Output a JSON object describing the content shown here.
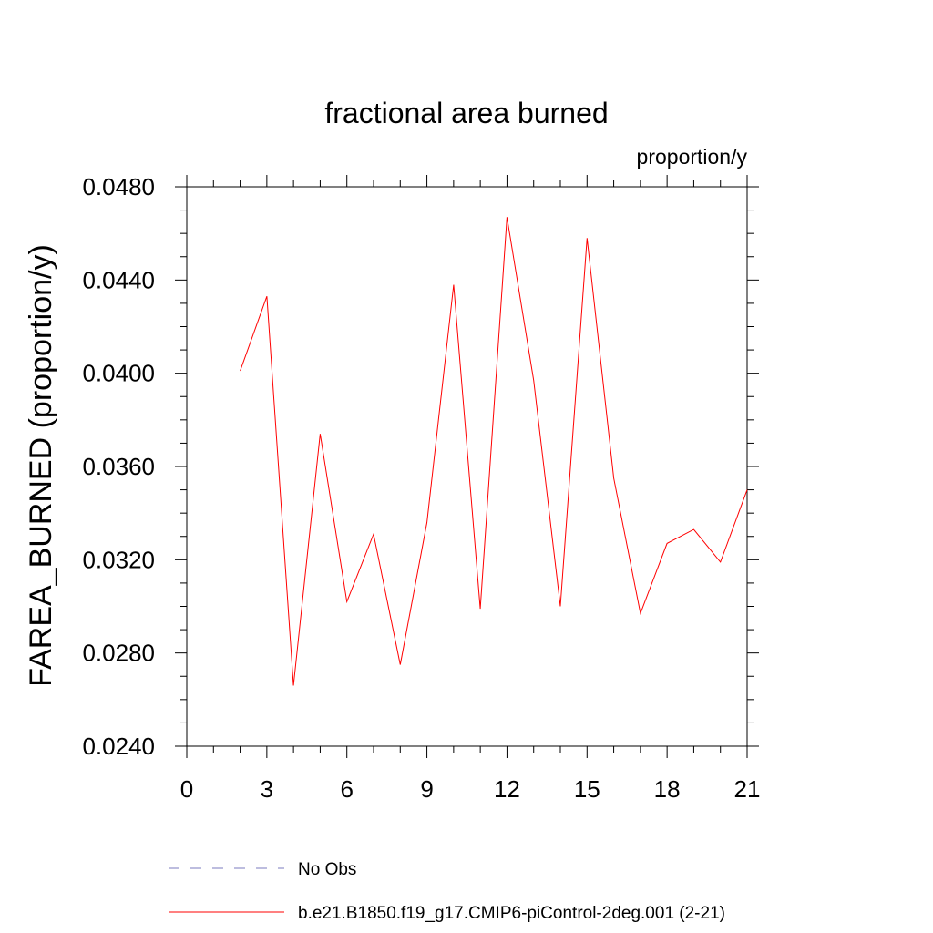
{
  "chart_data": {
    "type": "line",
    "title": "fractional area burned",
    "units": "proportion/y",
    "ylabel": "FAREA_BURNED  (proportion/y)",
    "xlabel": "",
    "xlim": [
      0,
      21
    ],
    "ylim": [
      0.024,
      0.048
    ],
    "x_ticks": [
      "0",
      "3",
      "6",
      "9",
      "12",
      "15",
      "18",
      "21"
    ],
    "y_ticks": [
      "0.0240",
      "0.0280",
      "0.0320",
      "0.0360",
      "0.0400",
      "0.0440",
      "0.0480"
    ],
    "series": [
      {
        "name": "b.e21.B1850.f19_g17.CMIP6-piControl-2deg.001 (2-21)",
        "color": "#ff0000",
        "style": "solid",
        "x": [
          2,
          3,
          4,
          5,
          6,
          7,
          8,
          9,
          10,
          11,
          12,
          13,
          14,
          15,
          16,
          17,
          18,
          19,
          20,
          21
        ],
        "y": [
          0.0401,
          0.0433,
          0.0266,
          0.0374,
          0.0302,
          0.0331,
          0.0275,
          0.0336,
          0.0438,
          0.0299,
          0.0467,
          0.0397,
          0.03,
          0.0458,
          0.0355,
          0.0297,
          0.0327,
          0.0333,
          0.0319,
          0.035
        ]
      }
    ],
    "legend": [
      {
        "label": "No Obs",
        "color": "#7b7bbf",
        "style": "dashed"
      },
      {
        "label": "b.e21.B1850.f19_g17.CMIP6-piControl-2deg.001 (2-21)",
        "color": "#ff0000",
        "style": "solid"
      }
    ],
    "legend_position": "bottom",
    "grid": false
  }
}
